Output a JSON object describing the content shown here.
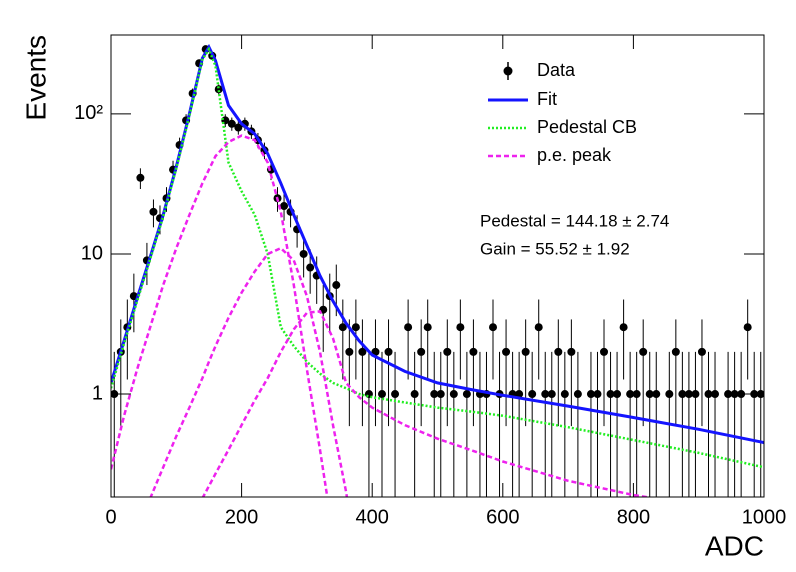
{
  "chart_data": {
    "type": "scatter",
    "x_label": "ADC",
    "y_label": "Events",
    "log_y": true,
    "xlim": [
      0,
      1000
    ],
    "ylim": [
      0.184,
      366
    ],
    "xticks": [
      0,
      200,
      400,
      600,
      800,
      1000
    ],
    "yticks": [
      1,
      10,
      {
        "value": 100,
        "label": "10²"
      }
    ],
    "annotations": [
      "Pedestal = 144.18 ± 2.74",
      "Gain = 55.52 ± 1.92"
    ],
    "points": {
      "name": "Data",
      "color": "#000000",
      "x": [
        5,
        15,
        25,
        35,
        45,
        55,
        65,
        75,
        85,
        95,
        105,
        115,
        125,
        135,
        145,
        155,
        165,
        175,
        185,
        195,
        205,
        215,
        225,
        235,
        245,
        255,
        265,
        275,
        285,
        295,
        305,
        315,
        325,
        335,
        345,
        355,
        365,
        375,
        385,
        395,
        405,
        415,
        425,
        435,
        445,
        455,
        465,
        475,
        485,
        495,
        505,
        515,
        525,
        535,
        545,
        555,
        565,
        575,
        585,
        595,
        605,
        615,
        625,
        635,
        645,
        655,
        665,
        675,
        685,
        695,
        705,
        715,
        725,
        735,
        745,
        755,
        765,
        775,
        785,
        795,
        805,
        815,
        825,
        835,
        845,
        855,
        865,
        875,
        885,
        895,
        905,
        915,
        925,
        935,
        945,
        955,
        965,
        975,
        985,
        995
      ],
      "values": [
        1,
        2,
        3,
        5,
        35,
        9,
        20,
        18,
        25,
        40,
        60,
        90,
        140,
        230,
        290,
        260,
        150,
        90,
        85,
        80,
        85,
        75,
        65,
        55,
        40,
        25,
        22,
        20,
        15,
        10,
        8,
        7,
        4,
        5,
        6,
        3,
        2,
        3,
        2,
        1,
        2,
        1,
        2,
        1,
        null,
        3,
        1,
        2,
        3,
        1,
        1,
        2,
        1,
        3,
        1,
        2,
        1,
        1,
        3,
        1,
        2,
        1,
        1,
        2,
        1,
        3,
        1,
        1,
        2,
        1,
        2,
        1,
        null,
        1,
        1,
        2,
        1,
        1,
        3,
        1,
        1,
        2,
        1,
        1,
        null,
        1,
        2,
        1,
        1,
        1,
        2,
        1,
        1,
        null,
        1,
        1,
        1,
        3,
        1,
        1
      ],
      "errors": [
        1,
        1.41,
        1.73,
        2.24,
        5.9,
        3,
        4.5,
        4.2,
        5,
        6.3,
        7.7,
        9.5,
        11.8,
        15.2,
        17,
        16.1,
        12.2,
        9.5,
        9.2,
        8.9,
        9.2,
        8.7,
        8.1,
        7.4,
        6.3,
        5,
        4.7,
        4.5,
        3.9,
        3.2,
        2.8,
        2.6,
        2,
        2.24,
        2.4,
        1.73,
        1.41,
        1.73,
        1.41,
        1,
        1.41,
        1,
        1.41,
        1,
        null,
        1.73,
        1,
        1.41,
        1.73,
        1,
        1,
        1.41,
        1,
        1.73,
        1,
        1.41,
        1,
        1,
        1.73,
        1,
        1.41,
        1,
        1,
        1.41,
        1,
        1.73,
        1,
        1,
        1.41,
        1,
        1.41,
        1,
        null,
        1,
        1,
        1.41,
        1,
        1,
        1.73,
        1,
        1,
        1.41,
        1,
        1,
        null,
        1,
        1.41,
        1,
        1,
        1,
        1.41,
        1,
        1,
        null,
        1,
        1,
        1,
        1.73,
        1,
        1
      ]
    },
    "curve_x": [
      0,
      20,
      40,
      60,
      80,
      100,
      120,
      140,
      150,
      160,
      180,
      200,
      220,
      240,
      260,
      280,
      300,
      320,
      340,
      360,
      380,
      400,
      450,
      500,
      550,
      600,
      700,
      800,
      900,
      1000
    ],
    "series": [
      {
        "name": "Fit",
        "color": "#1414ff",
        "style": "solid",
        "values": [
          1.2,
          2.4,
          4.8,
          9.5,
          19,
          42,
          100,
          250,
          300,
          240,
          115,
          85,
          72,
          52,
          32,
          19,
          11.5,
          7,
          4.6,
          3.2,
          2.4,
          1.9,
          1.45,
          1.2,
          1.08,
          0.98,
          0.82,
          0.68,
          0.56,
          0.45
        ]
      },
      {
        "name": "Pedestal CB",
        "color": "#22ee22",
        "style": "dotted",
        "values": [
          1.1,
          2.3,
          4.6,
          9.2,
          18.5,
          41,
          97,
          245,
          290,
          220,
          45,
          28,
          19,
          10,
          3,
          2.2,
          1.7,
          1.4,
          1.2,
          1.1,
          1.0,
          0.95,
          0.87,
          0.8,
          0.75,
          0.7,
          0.58,
          0.47,
          0.38,
          0.3
        ]
      },
      {
        "name": "p.e. peak",
        "color": "#ee22ee",
        "style": "dashed",
        "curves": [
          [
            0.29,
            0.7,
            1.5,
            3,
            6,
            11,
            19,
            32,
            40,
            50,
            63,
            70,
            65,
            45,
            20,
            6,
            1.5,
            0.4,
            0.1,
            null,
            null,
            null,
            null,
            null,
            null,
            null,
            null,
            null,
            null,
            null
          ],
          [
            null,
            null,
            null,
            0.18,
            0.3,
            0.5,
            0.8,
            1.3,
            1.7,
            2.2,
            3.5,
            5.3,
            7.5,
            10,
            11,
            9,
            5,
            2,
            0.6,
            0.2,
            0.05,
            null,
            null,
            null,
            null,
            null,
            null,
            null,
            null,
            null
          ],
          [
            null,
            null,
            null,
            null,
            null,
            null,
            null,
            0.18,
            0.22,
            0.27,
            0.4,
            0.6,
            0.9,
            1.3,
            2,
            2.9,
            3.8,
            3.9,
            2.5,
            1.2,
            0.95,
            0.8,
            0.6,
            0.48,
            0.4,
            0.33,
            0.24,
            0.19,
            0.16,
            0.14
          ]
        ]
      }
    ]
  }
}
